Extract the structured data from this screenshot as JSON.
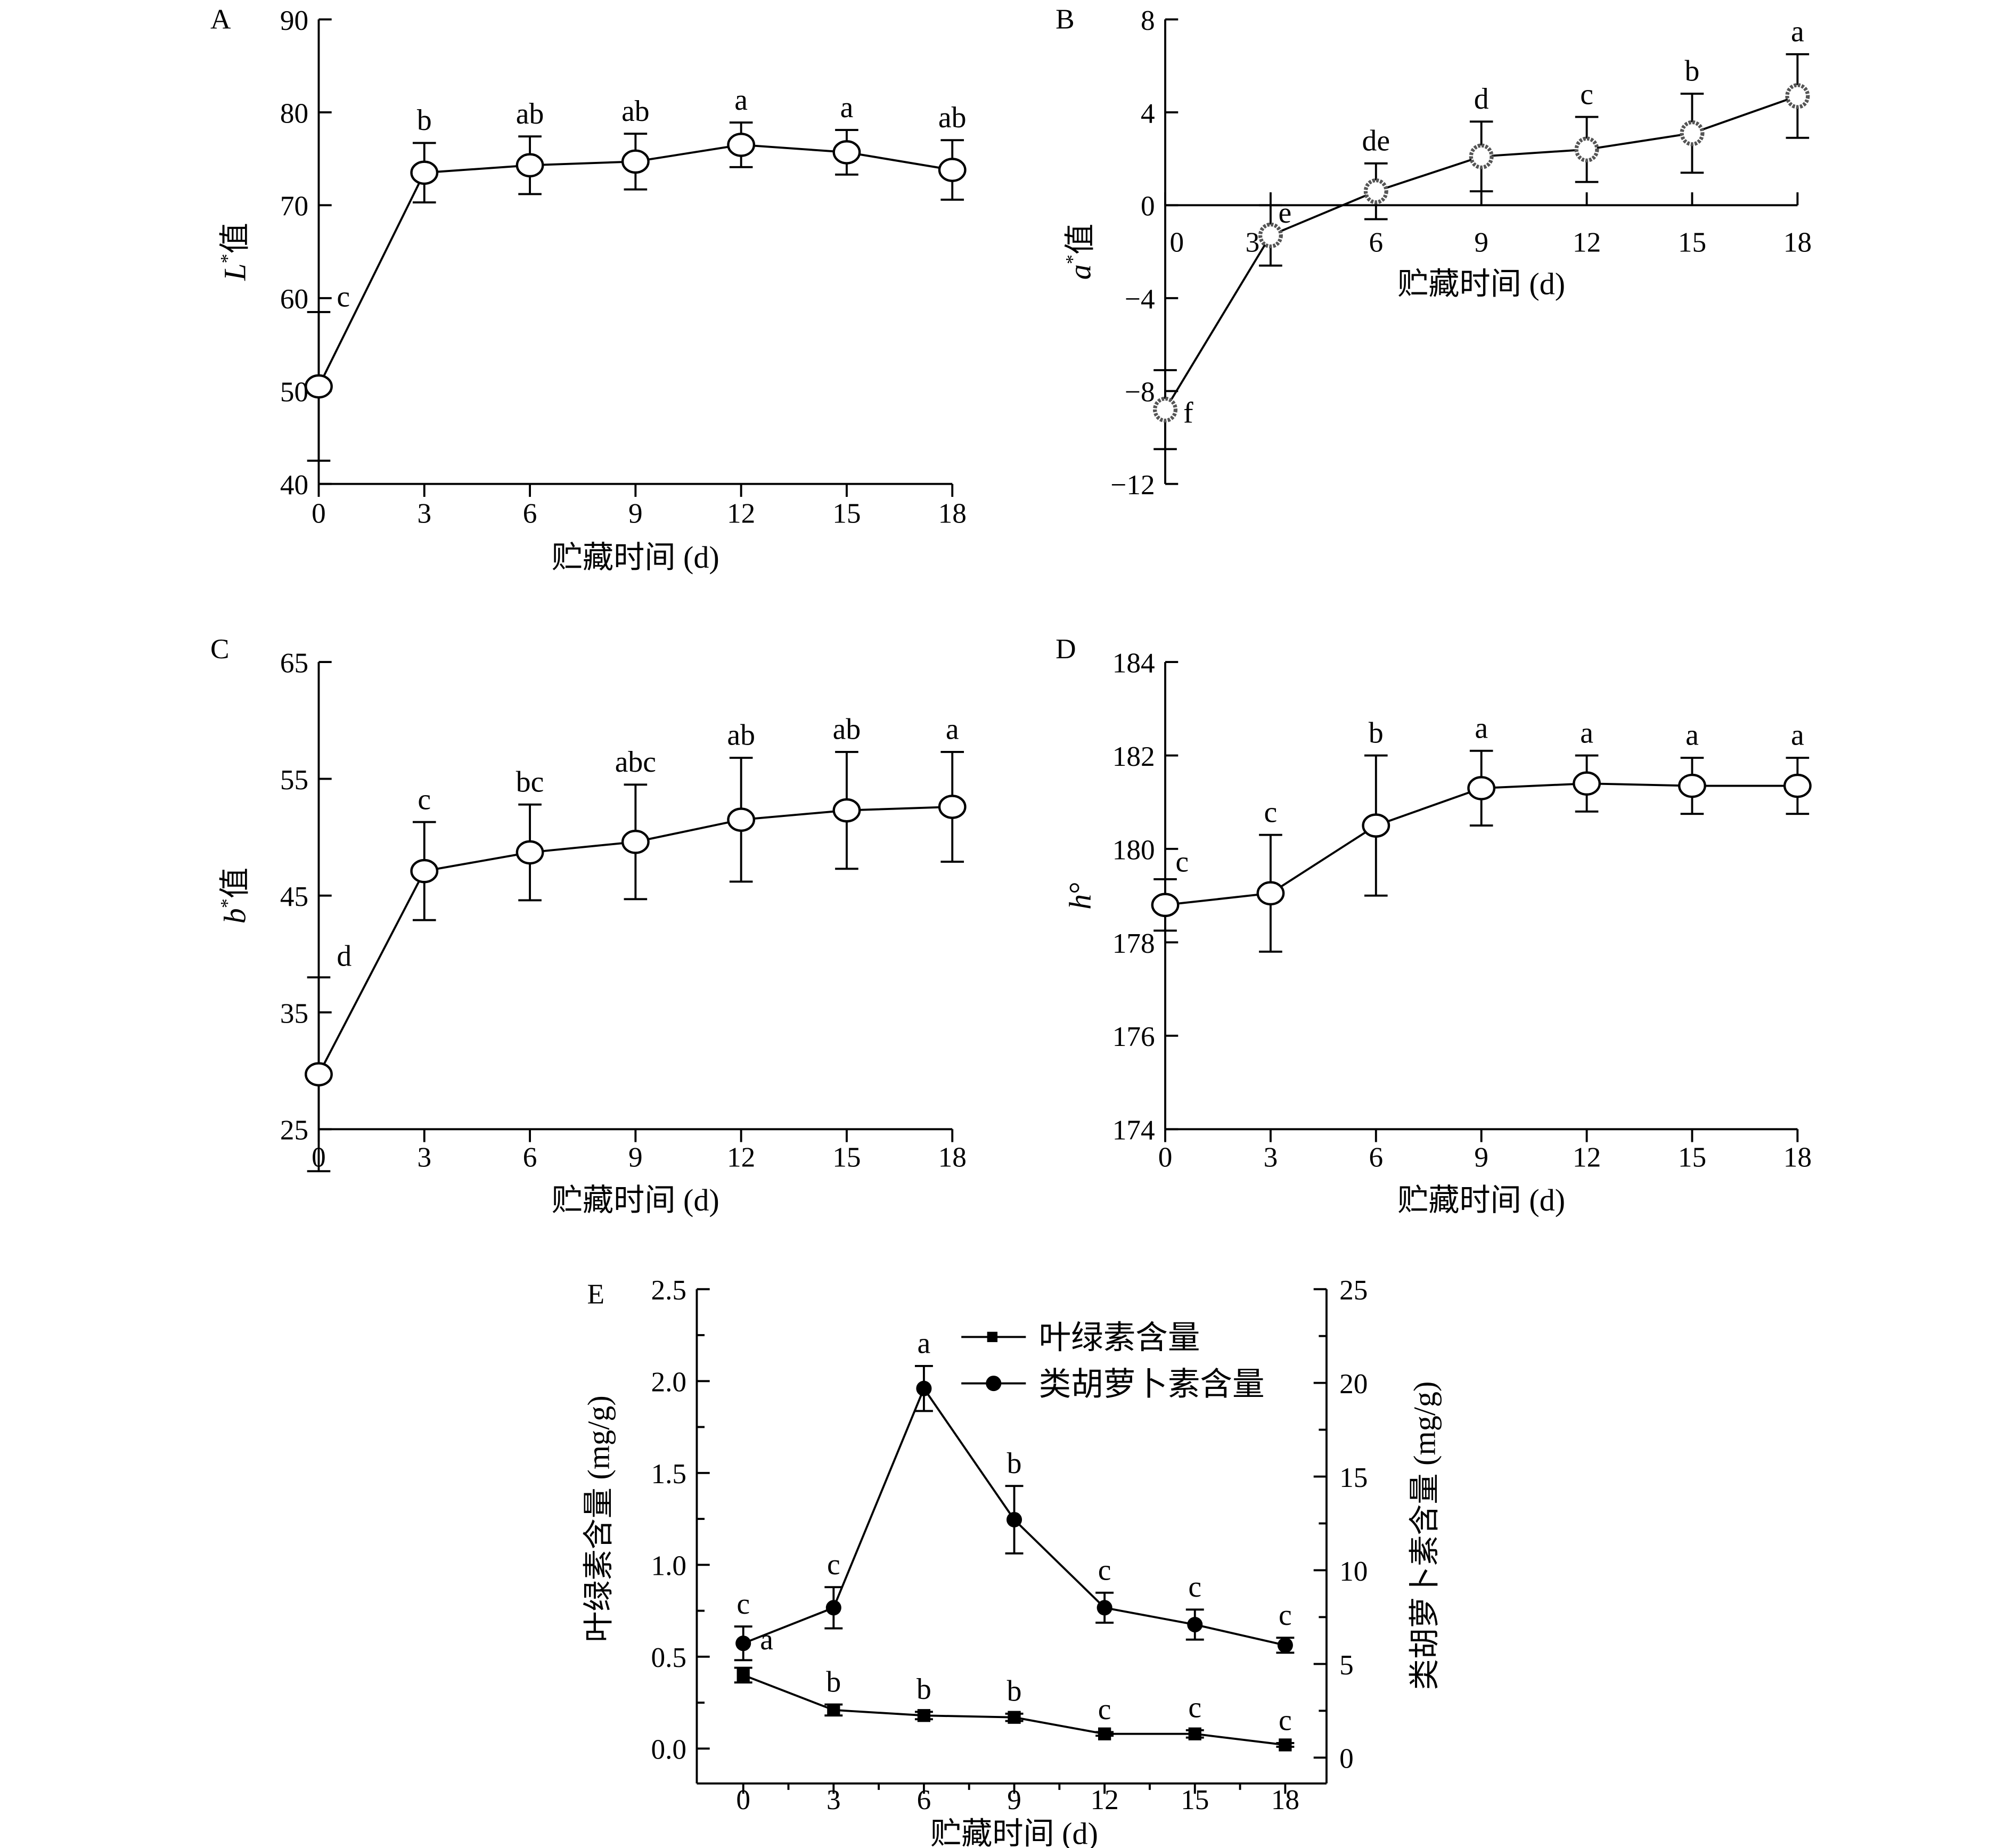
{
  "chart_data": [
    {
      "id": "A",
      "panel_label": "A",
      "type": "line",
      "xlabel": "贮藏时间 (d)",
      "ylabel_italic": "L",
      "ylabel_sup": "*",
      "ylabel_suffix": "值",
      "x": [
        0,
        3,
        6,
        9,
        12,
        15,
        18
      ],
      "xticks": [
        "0",
        "3",
        "6",
        "9",
        "12",
        "15",
        "18"
      ],
      "ylim": [
        40,
        90
      ],
      "yticks": [
        "40",
        "50",
        "60",
        "70",
        "80",
        "90"
      ],
      "series": [
        {
          "name": "L*",
          "marker": "open-circle",
          "values": [
            50.5,
            73.5,
            74.3,
            74.7,
            76.5,
            75.7,
            73.8
          ],
          "errors": [
            8.0,
            3.2,
            3.1,
            3.0,
            2.4,
            2.4,
            3.2
          ],
          "letters": [
            "c",
            "b",
            "ab",
            "ab",
            "a",
            "a",
            "ab"
          ]
        }
      ]
    },
    {
      "id": "B",
      "panel_label": "B",
      "type": "line",
      "xlabel": "贮藏时间 (d)",
      "ylabel_italic": "a",
      "ylabel_sup": "*",
      "ylabel_suffix": "值",
      "x": [
        0,
        3,
        6,
        9,
        12,
        15,
        18
      ],
      "xticks": [
        "0",
        "3",
        "6",
        "9",
        "12",
        "15",
        "18"
      ],
      "ylim": [
        -12,
        8
      ],
      "yticks": [
        "−12",
        "−8",
        "−4",
        "0",
        "4",
        "8"
      ],
      "series": [
        {
          "name": "a*",
          "marker": "grey-circle",
          "values": [
            -8.8,
            -1.3,
            0.6,
            2.1,
            2.4,
            3.1,
            4.7
          ],
          "errors": [
            1.7,
            1.3,
            1.2,
            1.5,
            1.4,
            1.7,
            1.8
          ],
          "letters": [
            "f",
            "e",
            "de",
            "d",
            "c",
            "b",
            "a"
          ]
        }
      ]
    },
    {
      "id": "C",
      "panel_label": "C",
      "type": "line",
      "xlabel": "贮藏时间 (d)",
      "ylabel_italic": "b",
      "ylabel_sup": "*",
      "ylabel_suffix": "值",
      "x": [
        0,
        3,
        6,
        9,
        12,
        15,
        18
      ],
      "xticks": [
        "0",
        "3",
        "6",
        "9",
        "12",
        "15",
        "18"
      ],
      "ylim": [
        25,
        65
      ],
      "yticks": [
        "25",
        "35",
        "45",
        "55",
        "65"
      ],
      "series": [
        {
          "name": "b*",
          "marker": "open-circle",
          "values": [
            29.7,
            47.1,
            48.7,
            49.6,
            51.5,
            52.3,
            52.6
          ],
          "errors": [
            8.3,
            4.2,
            4.1,
            4.9,
            5.3,
            5.0,
            4.7
          ],
          "letters": [
            "d",
            "c",
            "bc",
            "abc",
            "ab",
            "ab",
            "a"
          ]
        }
      ]
    },
    {
      "id": "D",
      "panel_label": "D",
      "type": "line",
      "xlabel": "贮藏时间 (d)",
      "ylabel_italic": "h",
      "ylabel_sup": "",
      "ylabel_suffix": "°",
      "x": [
        0,
        3,
        6,
        9,
        12,
        15,
        18
      ],
      "xticks": [
        "0",
        "3",
        "6",
        "9",
        "12",
        "15",
        "18"
      ],
      "ylim": [
        174,
        184
      ],
      "yticks": [
        "174",
        "176",
        "178",
        "180",
        "182",
        "184"
      ],
      "series": [
        {
          "name": "h°",
          "marker": "open-circle",
          "values": [
            178.8,
            179.05,
            180.5,
            181.3,
            181.4,
            181.35,
            181.35
          ],
          "errors": [
            0.55,
            1.25,
            1.5,
            0.8,
            0.6,
            0.6,
            0.6
          ],
          "letters": [
            "c",
            "c",
            "b",
            "a",
            "a",
            "a",
            "a"
          ]
        }
      ]
    },
    {
      "id": "E",
      "panel_label": "E",
      "type": "line",
      "xlabel": "贮藏时间 (d)",
      "ylabel": "叶绿素含量 (mg/g)",
      "y2label": "类胡萝卜素含量 (mg/g)",
      "x": [
        0,
        3,
        6,
        9,
        12,
        15,
        18
      ],
      "xticks": [
        "0",
        "3",
        "6",
        "9",
        "12",
        "15",
        "18"
      ],
      "ylim": [
        0,
        2.5
      ],
      "yticks": [
        "0.0",
        "0.5",
        "1.0",
        "1.5",
        "2.0",
        "2.5"
      ],
      "y2lim": [
        0,
        25
      ],
      "y2ticks": [
        "0",
        "5",
        "10",
        "15",
        "20",
        "25"
      ],
      "legend": "top-right",
      "series": [
        {
          "name": "叶绿素含量",
          "axis": "left",
          "marker": "square",
          "values": [
            0.4,
            0.21,
            0.18,
            0.17,
            0.08,
            0.08,
            0.02
          ],
          "errors": [
            0.04,
            0.03,
            0.02,
            0.02,
            0.01,
            0.02,
            0.01
          ],
          "letters": [
            "a",
            "b",
            "b",
            "b",
            "c",
            "c",
            "c"
          ]
        },
        {
          "name": "类胡萝卜素含量",
          "axis": "right",
          "marker": "filled-circle",
          "values": [
            6.1,
            8.0,
            19.7,
            12.7,
            8.0,
            7.1,
            6.0
          ],
          "errors": [
            0.9,
            1.1,
            1.2,
            1.8,
            0.8,
            0.8,
            0.4
          ],
          "letters": [
            "c",
            "c",
            "a",
            "b",
            "c",
            "c",
            "c"
          ]
        }
      ]
    }
  ]
}
